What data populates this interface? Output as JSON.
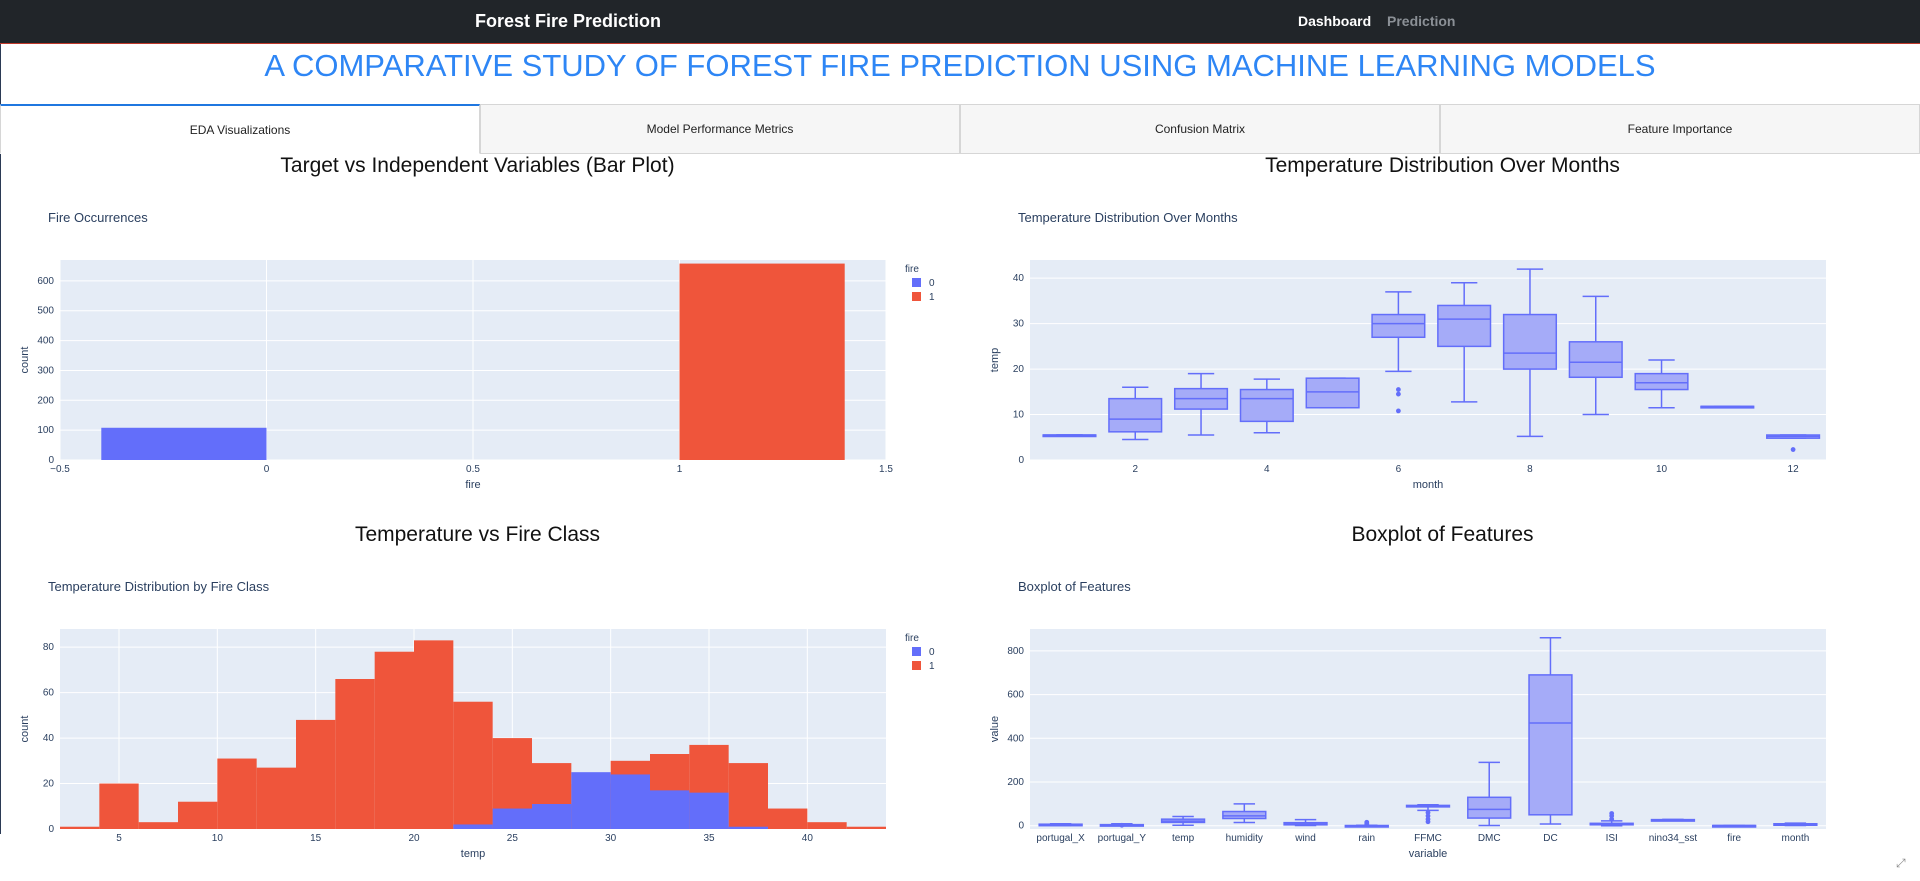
{
  "navbar": {
    "brand": "Forest Fire Prediction",
    "links": [
      {
        "label": "Dashboard",
        "active": true
      },
      {
        "label": "Prediction",
        "active": false
      }
    ]
  },
  "page_title": "A COMPARATIVE STUDY OF FOREST FIRE PREDICTION USING MACHINE LEARNING MODELS",
  "tabs": [
    {
      "label": "EDA Visualizations",
      "active": true
    },
    {
      "label": "Model Performance Metrics",
      "active": false
    },
    {
      "label": "Confusion Matrix",
      "active": false
    },
    {
      "label": "Feature Importance",
      "active": false
    }
  ],
  "colors": {
    "class0": "#636efa",
    "class1": "#ef553b",
    "box_fill": "#a5abf8",
    "box_line": "#636efa",
    "plot_bg": "#e5ecf6",
    "title_blue": "#2e86f5"
  },
  "sections": {
    "s1": "Target vs Independent Variables (Bar Plot)",
    "s2": "Temperature Distribution Over Months",
    "s3": "Temperature vs Fire Class",
    "s4": "Boxplot of Features"
  },
  "chart_data": [
    {
      "id": "bar",
      "type": "bar",
      "title": "Fire Occurrences",
      "xlabel": "fire",
      "ylabel": "count",
      "xlim": [
        -0.5,
        1.5
      ],
      "ylim": [
        0,
        670
      ],
      "xticks": [
        -0.5,
        0,
        0.5,
        1,
        1.5
      ],
      "xtick_labels": [
        "−0.5",
        "0",
        "0.5",
        "1",
        "1.5"
      ],
      "yticks": [
        0,
        100,
        200,
        300,
        400,
        500,
        600
      ],
      "legend_title": "fire",
      "legend": [
        "0",
        "1"
      ],
      "legend_position": "top-right",
      "bars": [
        {
          "x": -0.2,
          "width": 0.4,
          "value": 108,
          "class": "0"
        },
        {
          "x": 1.2,
          "width": 0.4,
          "value": 658,
          "class": "1"
        }
      ]
    },
    {
      "id": "months",
      "type": "box",
      "title": "Temperature Distribution Over Months",
      "xlabel": "month",
      "ylabel": "temp",
      "xlim": [
        0.4,
        12.5
      ],
      "ylim": [
        0,
        44
      ],
      "xticks": [
        2,
        4,
        6,
        8,
        10,
        12
      ],
      "yticks": [
        0,
        10,
        20,
        30,
        40
      ],
      "boxes": [
        {
          "x": 1,
          "min": 5.5,
          "q1": 5.5,
          "median": 5.5,
          "q3": 5.5,
          "max": 5.5,
          "outliers": []
        },
        {
          "x": 2,
          "min": 4.5,
          "q1": 6.2,
          "median": 9,
          "q3": 13.5,
          "max": 16,
          "outliers": []
        },
        {
          "x": 3,
          "min": 5.5,
          "q1": 11.2,
          "median": 13.5,
          "q3": 15.7,
          "max": 19,
          "outliers": []
        },
        {
          "x": 4,
          "min": 6,
          "q1": 8.5,
          "median": 13.5,
          "q3": 15.5,
          "max": 17.8,
          "outliers": []
        },
        {
          "x": 5,
          "min": 11.5,
          "q1": 11.5,
          "median": 15,
          "q3": 18,
          "max": 18,
          "outliers": []
        },
        {
          "x": 6,
          "min": 19.5,
          "q1": 27,
          "median": 30,
          "q3": 32,
          "max": 37,
          "outliers": [
            15.5,
            14.5,
            10.8
          ]
        },
        {
          "x": 7,
          "min": 12.8,
          "q1": 25,
          "median": 31,
          "q3": 34,
          "max": 39,
          "outliers": []
        },
        {
          "x": 8,
          "min": 5.2,
          "q1": 20,
          "median": 23.5,
          "q3": 32,
          "max": 42,
          "outliers": []
        },
        {
          "x": 9,
          "min": 10,
          "q1": 18.2,
          "median": 21.5,
          "q3": 26,
          "max": 36,
          "outliers": []
        },
        {
          "x": 10,
          "min": 11.5,
          "q1": 15.5,
          "median": 17,
          "q3": 19,
          "max": 22,
          "outliers": []
        },
        {
          "x": 11,
          "min": 11.8,
          "q1": 11.8,
          "median": 11.8,
          "q3": 11.8,
          "max": 11.8,
          "outliers": []
        },
        {
          "x": 12,
          "min": 4.8,
          "q1": 4.8,
          "median": 5.2,
          "q3": 5.5,
          "max": 5.5,
          "outliers": [
            2.3
          ]
        }
      ]
    },
    {
      "id": "hist",
      "type": "bar",
      "title": "Temperature Distribution by Fire Class",
      "xlabel": "temp",
      "ylabel": "count",
      "xlim": [
        2,
        44
      ],
      "ylim": [
        0,
        88
      ],
      "xticks": [
        5,
        10,
        15,
        20,
        25,
        30,
        35,
        40
      ],
      "yticks": [
        0,
        20,
        40,
        60,
        80
      ],
      "legend_title": "fire",
      "legend": [
        "0",
        "1"
      ],
      "legend_position": "top-right",
      "bin_width": 2,
      "bin_starts": [
        2,
        4,
        6,
        8,
        10,
        12,
        14,
        16,
        18,
        20,
        22,
        24,
        26,
        28,
        30,
        32,
        34,
        36,
        38,
        40,
        42
      ],
      "series": [
        {
          "name": "0",
          "values": [
            0,
            0,
            0,
            0,
            0,
            0,
            0,
            0,
            0,
            0,
            2,
            9,
            11,
            25,
            24,
            17,
            16,
            1,
            0,
            0,
            0
          ]
        },
        {
          "name": "1",
          "values": [
            1,
            20,
            3,
            12,
            31,
            27,
            48,
            66,
            78,
            83,
            56,
            40,
            29,
            20,
            30,
            33,
            37,
            29,
            9,
            3,
            1
          ]
        }
      ]
    },
    {
      "id": "features",
      "type": "box",
      "title": "Boxplot of Features",
      "xlabel": "variable",
      "ylabel": "value",
      "ylim": [
        -15,
        900
      ],
      "yticks": [
        0,
        200,
        400,
        600,
        800
      ],
      "categories": [
        "portugal_X",
        "portugal_Y",
        "temp",
        "humidity",
        "wind",
        "rain",
        "FFMC",
        "DMC",
        "DC",
        "ISI",
        "nino34_sst",
        "fire",
        "month"
      ],
      "boxes": [
        {
          "min": 1,
          "q1": 3,
          "median": 4,
          "q3": 7,
          "max": 9,
          "outliers": []
        },
        {
          "min": 2,
          "q1": 4,
          "median": 4,
          "q3": 5,
          "max": 9,
          "outliers": [
            2
          ]
        },
        {
          "min": 2,
          "q1": 15,
          "median": 21,
          "q3": 30,
          "max": 42,
          "outliers": []
        },
        {
          "min": 15,
          "q1": 33,
          "median": 45,
          "q3": 65,
          "max": 100,
          "outliers": []
        },
        {
          "min": 1,
          "q1": 4,
          "median": 8,
          "q3": 14,
          "max": 28,
          "outliers": []
        },
        {
          "min": 0,
          "q1": 0,
          "median": 0,
          "q3": 1,
          "max": 2,
          "outliers": [
            6,
            10,
            16
          ]
        },
        {
          "min": 70,
          "q1": 88,
          "median": 91,
          "q3": 93,
          "max": 96,
          "outliers": [
            18,
            30,
            45,
            60
          ]
        },
        {
          "min": 1,
          "q1": 35,
          "median": 75,
          "q3": 130,
          "max": 290,
          "outliers": []
        },
        {
          "min": 8,
          "q1": 50,
          "median": 470,
          "q3": 690,
          "max": 860,
          "outliers": []
        },
        {
          "min": 0,
          "q1": 6,
          "median": 8,
          "q3": 11,
          "max": 22,
          "outliers": [
            30,
            45,
            56
          ]
        },
        {
          "min": 26,
          "q1": 27,
          "median": 27.5,
          "q3": 28,
          "max": 29,
          "outliers": []
        },
        {
          "min": 0,
          "q1": 1,
          "median": 1,
          "q3": 1,
          "max": 1,
          "outliers": []
        },
        {
          "min": 1,
          "q1": 5,
          "median": 8,
          "q3": 9,
          "max": 12,
          "outliers": []
        }
      ]
    }
  ]
}
